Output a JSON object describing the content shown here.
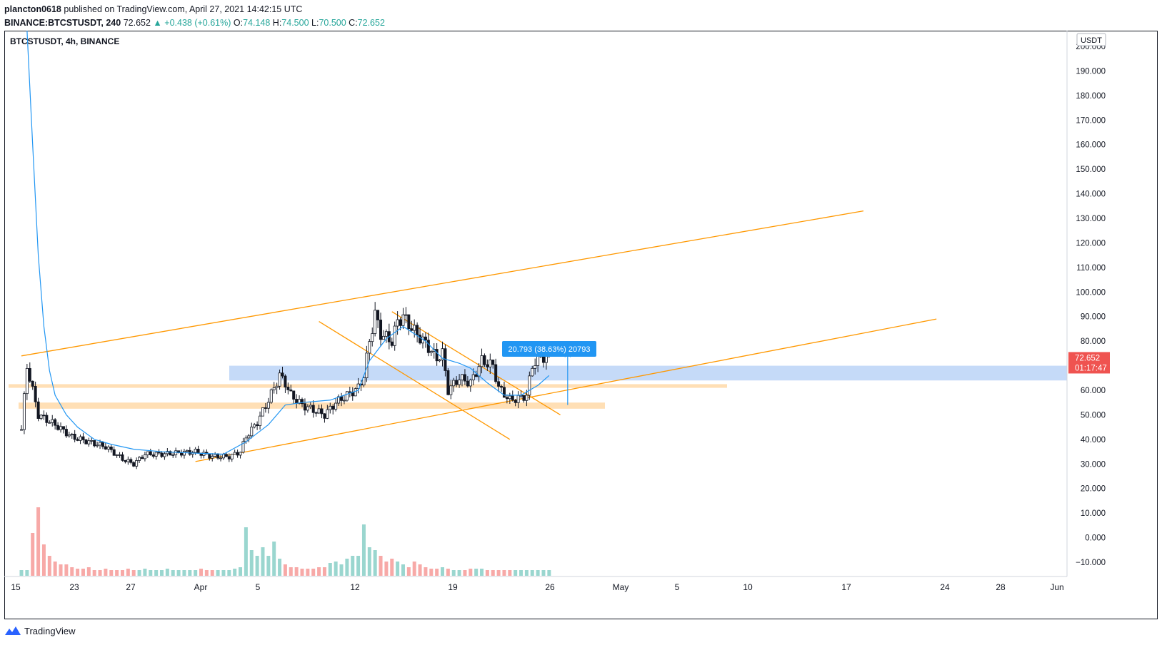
{
  "header": {
    "publisher": "plancton0618",
    "published_text": "published on TradingView.com, April 27, 2021 14:42:15 UTC",
    "symbol": "BINANCE:BTCSTUSDT, 240",
    "last": "72.652",
    "change": "▲ +0.438 (+0.61%)",
    "o_label": "O:",
    "o": "74.148",
    "h_label": "H:",
    "h": "74.500",
    "l_label": "L:",
    "l": "70.500",
    "c_label": "C:",
    "c": "72.652"
  },
  "chart_title": "BTCSTUSDT, 4h, BINANCE",
  "currency_badge": "USDT",
  "price_label": {
    "value": "72.652",
    "countdown": "01:17:47"
  },
  "measure_label": "20.793 (38.63%) 20793",
  "footer": {
    "brand": "TradingView"
  },
  "colors": {
    "up": "#26a69a",
    "down": "#ef5350",
    "candle_body": "#131722",
    "ma": "#2196f3",
    "trendline": "#ff9800",
    "zone_blue": "#bbd3f7",
    "zone_orange": "#ffd9a8",
    "price_badge": "#ef5350",
    "measure_badge": "#2196f3"
  },
  "chart_data": {
    "type": "candlestick",
    "title": "BTCSTUSDT, 4h, BINANCE",
    "x_ticks": [
      "15",
      "23",
      "27",
      "Apr",
      "5",
      "12",
      "19",
      "26",
      "May",
      "5",
      "10",
      "17",
      "24",
      "28",
      "Jun"
    ],
    "y_ticks": [
      "−10.000",
      "0.000",
      "10.000",
      "20.000",
      "30.000",
      "40.000",
      "50.000",
      "60.000",
      "70.000",
      "80.000",
      "90.000",
      "100.000",
      "110.000",
      "120.000",
      "130.000",
      "140.000",
      "150.000",
      "160.000",
      "170.000",
      "180.000",
      "190.000",
      "200.000"
    ],
    "y_values": [
      -10,
      0,
      10,
      20,
      30,
      40,
      50,
      60,
      70,
      80,
      90,
      100,
      110,
      120,
      130,
      140,
      150,
      160,
      170,
      180,
      190,
      200
    ],
    "ylim": [
      -13,
      212
    ],
    "price_path": [
      [
        0,
        44
      ],
      [
        1,
        70
      ],
      [
        3,
        50
      ],
      [
        6,
        46
      ],
      [
        9,
        41
      ],
      [
        12,
        39
      ],
      [
        15,
        37
      ],
      [
        18,
        32
      ],
      [
        20,
        30
      ],
      [
        22,
        34
      ],
      [
        25,
        34
      ],
      [
        28,
        34.5
      ],
      [
        31,
        35
      ],
      [
        34,
        33
      ],
      [
        37,
        33
      ],
      [
        39,
        35
      ],
      [
        40,
        41
      ],
      [
        42,
        47
      ],
      [
        44,
        56
      ],
      [
        46,
        66
      ],
      [
        47,
        63
      ],
      [
        48,
        58
      ],
      [
        50,
        54
      ],
      [
        52,
        52
      ],
      [
        54,
        50
      ],
      [
        56,
        55
      ],
      [
        58,
        58
      ],
      [
        60,
        61
      ],
      [
        61,
        66
      ],
      [
        62,
        80
      ],
      [
        63,
        91
      ],
      [
        64,
        83
      ],
      [
        66,
        80
      ],
      [
        67,
        88
      ],
      [
        68,
        90
      ],
      [
        70,
        84
      ],
      [
        72,
        79
      ],
      [
        74,
        73
      ],
      [
        75,
        75
      ],
      [
        76,
        60
      ],
      [
        78,
        65
      ],
      [
        80,
        63
      ],
      [
        82,
        72
      ],
      [
        84,
        70
      ],
      [
        85,
        61
      ],
      [
        87,
        56
      ],
      [
        89,
        57
      ],
      [
        90,
        58
      ],
      [
        91,
        70
      ],
      [
        92,
        73
      ],
      [
        94,
        74
      ]
    ],
    "ma_path": [
      [
        1,
        230
      ],
      [
        2,
        160
      ],
      [
        3,
        115
      ],
      [
        4,
        86
      ],
      [
        5,
        68
      ],
      [
        6,
        58
      ],
      [
        8,
        50
      ],
      [
        10,
        45
      ],
      [
        13,
        40
      ],
      [
        16,
        38
      ],
      [
        20,
        36
      ],
      [
        25,
        35
      ],
      [
        30,
        34.5
      ],
      [
        36,
        34
      ],
      [
        40,
        39
      ],
      [
        44,
        46
      ],
      [
        47,
        54
      ],
      [
        50,
        55
      ],
      [
        55,
        56
      ],
      [
        60,
        60
      ],
      [
        62,
        72
      ],
      [
        65,
        81
      ],
      [
        68,
        86
      ],
      [
        72,
        80
      ],
      [
        75,
        73
      ],
      [
        78,
        71
      ],
      [
        80,
        69
      ],
      [
        83,
        63
      ],
      [
        86,
        58
      ],
      [
        89,
        58
      ],
      [
        92,
        62
      ],
      [
        94,
        66
      ]
    ],
    "volume_profile": [
      4,
      4,
      30,
      48,
      22,
      14,
      10,
      8,
      8,
      6,
      5,
      5,
      6,
      4,
      4,
      5,
      4,
      4,
      4,
      5,
      4,
      4,
      5,
      4,
      4,
      4,
      5,
      4,
      4,
      4,
      4,
      4,
      5,
      4,
      4,
      4,
      4,
      4,
      5,
      6,
      34,
      18,
      14,
      20,
      14,
      24,
      12,
      8,
      6,
      6,
      5,
      5,
      5,
      6,
      6,
      9,
      10,
      8,
      12,
      14,
      14,
      36,
      20,
      18,
      14,
      10,
      12,
      10,
      8,
      6,
      10,
      8,
      6,
      5,
      5,
      6,
      5,
      4,
      4,
      4,
      5,
      5,
      5,
      4,
      4,
      4,
      4,
      4,
      4,
      4,
      4,
      4,
      4,
      4,
      4
    ],
    "zones": [
      {
        "name": "resistance-zone",
        "y0": 64,
        "y1": 70
      },
      {
        "name": "support-zone-upper",
        "y0": 61,
        "y1": 62.5
      },
      {
        "name": "support-zone-lower",
        "y0": 52.5,
        "y1": 55
      }
    ],
    "trendlines": [
      {
        "name": "upper-channel",
        "x0": 0,
        "y0": 74,
        "x1": 150,
        "y1": 133
      },
      {
        "name": "lower-channel",
        "x0": 31,
        "y0": 31,
        "x1": 163,
        "y1": 89
      },
      {
        "name": "falling-wedge-top",
        "x0": 66,
        "y0": 92,
        "x1": 96,
        "y1": 50
      },
      {
        "name": "falling-wedge-bottom",
        "x0": 53,
        "y0": 88,
        "x1": 87,
        "y1": 40
      }
    ],
    "last_price": 72.652,
    "measure": {
      "from": 54,
      "to": 75,
      "x": 87
    }
  }
}
